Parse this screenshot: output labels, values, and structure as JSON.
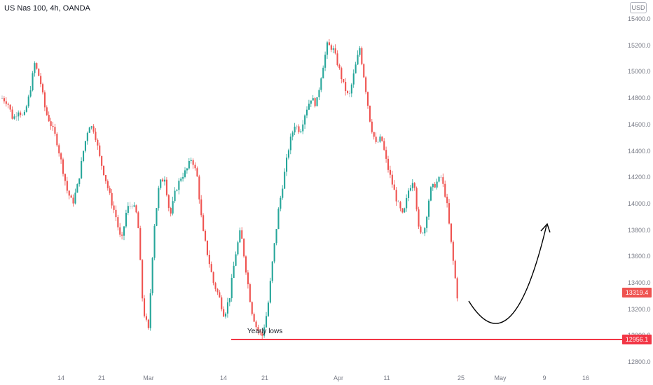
{
  "header": {
    "symbol": "US Nas 100, 4h, OANDA",
    "currency": "USD"
  },
  "colors": {
    "up": "#26a69a",
    "down": "#ef5350",
    "neutral": "#b2b5be",
    "line": "#f23645",
    "arrow": "#000000",
    "text": "#131722",
    "axis_text": "#787b86"
  },
  "chart_data": {
    "type": "candlestick",
    "timeframe": "4h",
    "y_axis": {
      "ticks": [
        "15400.0",
        "15200.0",
        "15000.0",
        "14800.0",
        "14600.0",
        "14400.0",
        "14200.0",
        "14000.0",
        "13800.0",
        "13600.0",
        "13400.0",
        "13200.0",
        "13000.0",
        "12800.0"
      ],
      "range": [
        12700,
        15500
      ]
    },
    "x_axis": {
      "ticks": [
        "14",
        "21",
        "Mar",
        "14",
        "21",
        "Apr",
        "11",
        "25",
        "May",
        "9",
        "16"
      ]
    },
    "price_path": [
      14800,
      14770,
      14640,
      14710,
      14650,
      14820,
      15060,
      14940,
      14700,
      14600,
      14490,
      14300,
      14100,
      14000,
      14150,
      14400,
      14600,
      14560,
      14350,
      14200,
      14040,
      13900,
      13700,
      13960,
      14000,
      13900,
      13200,
      13040,
      13800,
      14150,
      14200,
      13900,
      14100,
      14200,
      14250,
      14350,
      14200,
      13800,
      13600,
      13400,
      13300,
      13150,
      13300,
      13600,
      13800,
      13500,
      13200,
      13050,
      13000,
      13200,
      13600,
      13950,
      14200,
      14450,
      14600,
      14550,
      14700,
      14800,
      14750,
      15000,
      15200,
      15180,
      15050,
      14900,
      14800,
      15000,
      15180,
      14900,
      14600,
      14450,
      14500,
      14300,
      14150,
      14000,
      13900,
      14100,
      14200,
      13750,
      13820,
      14100,
      14150,
      14200,
      14030,
      13650,
      13300
    ],
    "current_price": "13319.4",
    "yearly_low": "12956.1",
    "annotation": "Yearly lows",
    "projection": "curved arrow forecasting a drop then a recovery",
    "grid": false
  }
}
